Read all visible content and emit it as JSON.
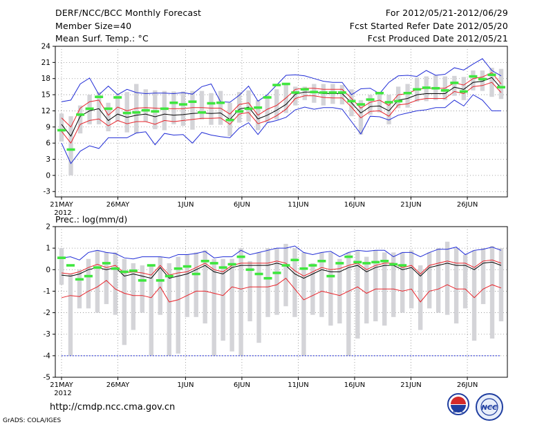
{
  "header": {
    "title": "DERF/NCC/BCC Monthly Forecast",
    "member_size": "Member Size=40",
    "temp_label": "Mean Surf. Temp.: °C",
    "period": "For 2012/05/21-2012/06/29",
    "start_ref": "Fcst Started Refer Date 2012/05/20",
    "produced": "Fcst Produced Date 2012/05/21"
  },
  "footer": {
    "url": "http://cmdp.ncc.cma.gov.cn",
    "grads": "GrADS: COLA/IGES",
    "logo_bcc": "BCC",
    "logo_ncc": "NCC"
  },
  "colors": {
    "box": "#d4d4d8",
    "mean": "#000000",
    "spread": "#e8232a",
    "envelope": "#1f2bd6",
    "obs": "#3ee63e",
    "threshold": "#1f2bd6",
    "grid": "#8a8a8a"
  },
  "chart_data": [
    {
      "type": "line",
      "title": "Mean Surf. Temp.: °C",
      "x_tick_labels": [
        "21MAY",
        "26MAY",
        "1JUN",
        "6JUN",
        "11JUN",
        "16JUN",
        "21JUN",
        "26JUN"
      ],
      "x_year_label": "2012",
      "x_tick_days": [
        0,
        5,
        11,
        16,
        21,
        26,
        31,
        36
      ],
      "ylim": [
        -4,
        24
      ],
      "y_ticks": [
        -3,
        0,
        3,
        6,
        9,
        12,
        15,
        18,
        21,
        24
      ],
      "series": [
        {
          "name": "mean",
          "values": [
            9.5,
            7.3,
            11,
            12,
            12.4,
            10.2,
            11.4,
            10.8,
            11.2,
            11.4,
            10.9,
            11.4,
            11.2,
            11.3,
            11.5,
            11.6,
            11.5,
            11.6,
            10.4,
            12.3,
            12.7,
            10.5,
            11.2,
            12.1,
            13.2,
            15.1,
            15.5,
            15.5,
            15.2,
            15.2,
            15.2,
            13.5,
            11.6,
            12.8,
            12.9,
            12,
            14,
            14.3,
            15,
            15.2,
            15.2,
            15.2,
            16.4,
            16,
            17.3,
            17.5,
            18.2,
            16.2
          ]
        },
        {
          "name": "spread_upper",
          "values": [
            10.7,
            9,
            12.5,
            13.7,
            14,
            11.2,
            12.7,
            12,
            12.5,
            12.6,
            12.5,
            12.4,
            12.4,
            12.4,
            12.6,
            12.6,
            12.5,
            12.5,
            11.4,
            13.2,
            13.5,
            11.2,
            12.3,
            13,
            14.4,
            16,
            16.2,
            16.2,
            16,
            16,
            16,
            14.3,
            12.5,
            13.6,
            14,
            13,
            15,
            15.2,
            16,
            16.2,
            16.2,
            16.2,
            17.2,
            16.8,
            18,
            18.3,
            19.1,
            17
          ]
        },
        {
          "name": "spread_lower",
          "values": [
            8.2,
            6,
            9.5,
            10.2,
            10.5,
            9.2,
            10.2,
            9.6,
            10,
            10,
            9.5,
            10.2,
            10,
            10.2,
            10.4,
            10.6,
            10.6,
            10.7,
            9.5,
            11.4,
            11.7,
            9.6,
            10.2,
            11.1,
            12.3,
            14.3,
            14.8,
            14.8,
            14.5,
            14.4,
            14.4,
            12.7,
            10.7,
            11.9,
            12,
            11,
            13.1,
            13.3,
            14,
            14.3,
            14.3,
            14.3,
            15.6,
            15.2,
            16.5,
            16.7,
            17.3,
            15.4
          ]
        },
        {
          "name": "envelope_upper",
          "values": [
            13.7,
            14,
            17,
            18.1,
            15,
            16.6,
            15,
            16,
            15.4,
            15.2,
            15.3,
            15.3,
            15.2,
            15.4,
            15.1,
            16.5,
            17,
            13.7,
            13.6,
            14.9,
            16.6,
            13.8,
            15,
            16.8,
            18.6,
            18.7,
            18.5,
            18,
            17.5,
            17.3,
            17.3,
            15,
            16.1,
            16.2,
            15.2,
            17.3,
            18.5,
            18.6,
            18.4,
            19.5,
            18.6,
            18.8,
            20,
            19.6,
            20.7,
            21.7,
            19.5,
            18.5
          ]
        },
        {
          "name": "envelope_lower",
          "values": [
            6,
            2.2,
            4.5,
            5.5,
            5,
            7,
            7,
            7,
            7.9,
            8.1,
            5.7,
            7.8,
            7.5,
            7.6,
            6,
            8,
            7.5,
            7.2,
            7,
            8.8,
            9.8,
            7.6,
            9.8,
            10.2,
            10.8,
            12.2,
            12.7,
            12.3,
            12.6,
            12.6,
            12.3,
            10,
            7.7,
            11,
            10.9,
            10.3,
            11.2,
            11.6,
            12,
            12.2,
            12.6,
            12.6,
            14,
            12.9,
            15,
            14,
            12,
            12
          ]
        },
        {
          "name": "box_top",
          "values": [
            11.5,
            11,
            13,
            15,
            15.5,
            13.5,
            15,
            15.5,
            17,
            16,
            15.8,
            15.7,
            15.6,
            15.6,
            15.7,
            15.7,
            15.3,
            15.7,
            13.5,
            15.5,
            15.8,
            14,
            15,
            16,
            17,
            16.5,
            16.5,
            17,
            17,
            17,
            16.8,
            16,
            14,
            15,
            15.3,
            15,
            16.5,
            17,
            18.2,
            18.4,
            18.6,
            18.4,
            18.5,
            18.3,
            19.5,
            19.5,
            20,
            19.8
          ]
        },
        {
          "name": "box_bottom",
          "values": [
            6.3,
            0,
            7.8,
            9.5,
            9.5,
            8.2,
            10,
            8,
            7.8,
            10,
            8.6,
            8.4,
            9.5,
            9.2,
            8.5,
            10.4,
            9.4,
            9.4,
            7.3,
            9.8,
            10,
            8.4,
            9.8,
            10.4,
            11.6,
            13,
            14,
            13.5,
            13,
            13.3,
            13.2,
            11,
            7.6,
            11.3,
            11.7,
            9.5,
            12.5,
            12.6,
            13.7,
            13.8,
            14,
            14,
            14.8,
            14,
            15.8,
            15.7,
            14.6,
            14.2
          ]
        },
        {
          "name": "observed",
          "values": [
            8.4,
            4.8,
            11.3,
            12.4,
            14.6,
            12.4,
            14.5,
            11.6,
            11.7,
            12.1,
            11.9,
            12.4,
            13.5,
            13.2,
            13.7,
            11.7,
            13.4,
            13.5,
            10.3,
            11.9,
            12.4,
            12.6,
            14.5,
            16.8,
            17,
            15.4,
            16,
            15.5,
            15.4,
            15.4,
            15.4,
            13.8,
            13.2,
            14.1,
            15.3,
            13.6,
            13.8,
            15.3,
            16,
            16.3,
            16.2,
            15.8,
            17.2,
            15.6,
            18.4,
            17.9,
            18.7,
            16.4
          ]
        }
      ]
    },
    {
      "type": "line",
      "title": "Prec.: log(mm/d)",
      "x_tick_labels": [
        "21MAY",
        "26MAY",
        "1JUN",
        "6JUN",
        "11JUN",
        "16JUN",
        "21JUN",
        "26JUN"
      ],
      "x_year_label": "2012",
      "x_tick_days": [
        0,
        5,
        11,
        16,
        21,
        26,
        31,
        36
      ],
      "ylim": [
        -5,
        2
      ],
      "y_ticks": [
        -5,
        -4,
        -3,
        -2,
        -1,
        0,
        1,
        2
      ],
      "threshold": -4,
      "series": [
        {
          "name": "mean",
          "values": [
            -0.25,
            -0.3,
            -0.2,
            0,
            0.1,
            0,
            0.1,
            -0.3,
            -0.2,
            -0.3,
            -0.4,
            0.1,
            -0.4,
            -0.3,
            -0.2,
            0,
            0.2,
            -0.1,
            -0.2,
            0.1,
            0.2,
            0.2,
            0.2,
            0.2,
            0.3,
            0.2,
            -0.2,
            -0.4,
            -0.2,
            0,
            -0.1,
            -0.1,
            0.1,
            0.2,
            -0.1,
            0.1,
            0.2,
            0.2,
            0,
            0.1,
            -0.3,
            0.1,
            0.2,
            0.3,
            0.2,
            0.2,
            0,
            0.3,
            0.35,
            0.2
          ]
        },
        {
          "name": "spread_upper",
          "values": [
            -0.15,
            -0.2,
            -0.1,
            0.1,
            0.25,
            0.1,
            0.2,
            -0.15,
            -0.1,
            -0.15,
            -0.25,
            0.2,
            -0.25,
            -0.15,
            -0.1,
            0.1,
            0.3,
            0,
            -0.1,
            0.2,
            0.3,
            0.3,
            0.3,
            0.3,
            0.4,
            0.3,
            -0.05,
            -0.3,
            -0.1,
            0.1,
            0,
            0.05,
            0.2,
            0.3,
            0,
            0.2,
            0.3,
            0.3,
            0.1,
            0.2,
            -0.2,
            0.2,
            0.3,
            0.4,
            0.3,
            0.3,
            0.1,
            0.4,
            0.45,
            0.3
          ]
        },
        {
          "name": "spread_lower",
          "values": [
            -1.3,
            -1.2,
            -1.25,
            -1,
            -0.8,
            -0.5,
            -0.9,
            -1.1,
            -1.2,
            -1.2,
            -1.3,
            -0.8,
            -1.5,
            -1.4,
            -1.2,
            -1,
            -1,
            -1.1,
            -1.2,
            -0.8,
            -0.9,
            -0.8,
            -0.8,
            -0.8,
            -0.7,
            -0.4,
            -0.9,
            -1.4,
            -1.2,
            -1,
            -1.1,
            -1.2,
            -1,
            -0.8,
            -1.1,
            -0.9,
            -0.9,
            -0.9,
            -1,
            -0.9,
            -1.5,
            -1,
            -0.9,
            -0.7,
            -0.9,
            -0.9,
            -1.3,
            -0.9,
            -0.7,
            -0.85
          ]
        },
        {
          "name": "envelope_upper",
          "values": [
            0.55,
            0.6,
            0.45,
            0.8,
            0.9,
            0.8,
            0.75,
            0.55,
            0.5,
            0.6,
            0.6,
            0.6,
            0.55,
            0.7,
            0.7,
            0.75,
            0.85,
            0.55,
            0.6,
            0.6,
            0.9,
            0.7,
            0.8,
            0.9,
            1,
            1,
            1.1,
            0.8,
            0.7,
            0.8,
            0.85,
            0.6,
            0.8,
            0.9,
            0.85,
            0.9,
            0.9,
            0.6,
            0.8,
            0.8,
            0.6,
            0.8,
            0.95,
            0.95,
            1.05,
            0.7,
            0.9,
            0.95,
            1.05,
            0.9
          ]
        },
        {
          "name": "box_top",
          "values": [
            1,
            -0.2,
            0,
            0.5,
            0.9,
            0.8,
            0.8,
            0.5,
            0.3,
            0.2,
            0.2,
            0.6,
            0.3,
            0.6,
            0.7,
            0.8,
            0.9,
            0.5,
            0.5,
            0.5,
            1,
            0.4,
            0.8,
            1,
            1,
            1.2,
            1,
            0.8,
            0.3,
            0.8,
            0.8,
            0.5,
            0.8,
            0.9,
            0.6,
            0.9,
            0.8,
            0.8,
            0.8,
            0.9,
            0.2,
            0.8,
            1,
            1.3,
            1,
            0.7,
            0.9,
            1,
            1.1,
            1
          ]
        },
        {
          "name": "box_bottom",
          "values": [
            -0.7,
            -4,
            -1.8,
            -1.8,
            -2,
            -1.6,
            -2.1,
            -3.5,
            -2.8,
            -2,
            -4,
            -2.1,
            -4,
            -3.9,
            -2.2,
            -2.2,
            -2.5,
            -4,
            -3.3,
            -3.8,
            -4,
            -2.4,
            -3.4,
            -2.2,
            -2.1,
            -1.7,
            -2.2,
            -4,
            -2.1,
            -2.2,
            -2.6,
            -2.5,
            -4,
            -3.2,
            -2.5,
            -2.4,
            -2.6,
            -2.2,
            -2,
            -1.8,
            -2.8,
            -1.8,
            -2,
            -2.1,
            -2.5,
            -1.8,
            -3.3,
            -1.6,
            -3.2,
            -2.4
          ]
        },
        {
          "name": "observed",
          "values": [
            0.55,
            0.2,
            -0.45,
            -0.3,
            0.1,
            0.3,
            0.05,
            -0.1,
            -0.05,
            -0.5,
            0.2,
            -0.5,
            -0.3,
            0.05,
            0.15,
            -0.2,
            0.4,
            0.3,
            0.1,
            0.25,
            0.6,
            0,
            -0.2,
            -0.4,
            -0.15,
            0.2,
            0.45,
            0.05,
            0.2,
            0.4,
            -0.3,
            0.3,
            0.6,
            0.35,
            0.3,
            0.35,
            0.4,
            0.25,
            0.2
          ]
        }
      ]
    }
  ]
}
